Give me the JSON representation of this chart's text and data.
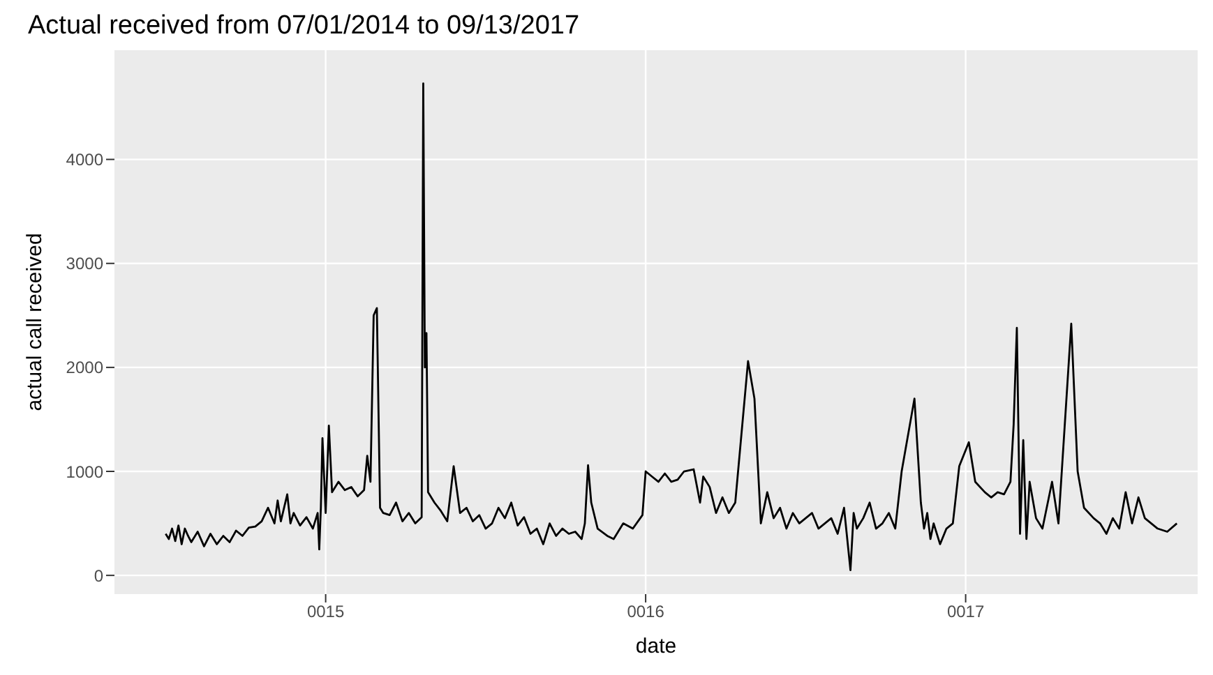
{
  "chart_data": {
    "type": "line",
    "title": "Actual received from 07/01/2014 to 09/13/2017",
    "xlabel": "date",
    "ylabel": "actual call received",
    "x": [
      14.5,
      14.51,
      14.52,
      14.53,
      14.54,
      14.55,
      14.56,
      14.57,
      14.58,
      14.6,
      14.62,
      14.64,
      14.66,
      14.68,
      14.7,
      14.72,
      14.74,
      14.76,
      14.78,
      14.8,
      14.82,
      14.84,
      14.85,
      14.86,
      14.88,
      14.89,
      14.9,
      14.92,
      14.94,
      14.96,
      14.975,
      14.98,
      14.985,
      14.99,
      15.0,
      15.01,
      15.02,
      15.04,
      15.06,
      15.08,
      15.1,
      15.12,
      15.13,
      15.14,
      15.15,
      15.16,
      15.17,
      15.18,
      15.2,
      15.22,
      15.24,
      15.26,
      15.28,
      15.3,
      15.305,
      15.31,
      15.315,
      15.32,
      15.34,
      15.36,
      15.38,
      15.4,
      15.42,
      15.44,
      15.46,
      15.48,
      15.5,
      15.52,
      15.54,
      15.56,
      15.58,
      15.6,
      15.62,
      15.64,
      15.66,
      15.68,
      15.7,
      15.72,
      15.74,
      15.76,
      15.78,
      15.8,
      15.81,
      15.82,
      15.83,
      15.85,
      15.88,
      15.9,
      15.93,
      15.96,
      15.99,
      16.0,
      16.02,
      16.04,
      16.06,
      16.08,
      16.1,
      16.12,
      16.15,
      16.17,
      16.18,
      16.2,
      16.22,
      16.24,
      16.26,
      16.28,
      16.32,
      16.34,
      16.36,
      16.38,
      16.4,
      16.42,
      16.44,
      16.46,
      16.48,
      16.5,
      16.52,
      16.54,
      16.56,
      16.58,
      16.6,
      16.62,
      16.64,
      16.65,
      16.66,
      16.68,
      16.7,
      16.72,
      16.74,
      16.76,
      16.78,
      16.8,
      16.84,
      16.86,
      16.87,
      16.88,
      16.89,
      16.9,
      16.92,
      16.94,
      16.96,
      16.98,
      17.01,
      17.03,
      17.06,
      17.08,
      17.1,
      17.12,
      17.14,
      17.15,
      17.16,
      17.17,
      17.18,
      17.19,
      17.2,
      17.22,
      17.24,
      17.27,
      17.29,
      17.33,
      17.35,
      17.37,
      17.4,
      17.42,
      17.44,
      17.46,
      17.48,
      17.5,
      17.52,
      17.54,
      17.56,
      17.58,
      17.6,
      17.63,
      17.66
    ],
    "values": [
      400,
      350,
      450,
      330,
      480,
      300,
      450,
      380,
      320,
      420,
      280,
      400,
      300,
      380,
      320,
      430,
      380,
      460,
      470,
      520,
      650,
      500,
      720,
      520,
      780,
      500,
      600,
      480,
      560,
      450,
      600,
      250,
      650,
      1320,
      600,
      1440,
      800,
      900,
      820,
      850,
      760,
      820,
      1150,
      900,
      2500,
      2570,
      650,
      600,
      580,
      700,
      520,
      600,
      500,
      560,
      4730,
      2000,
      2330,
      800,
      700,
      620,
      520,
      1050,
      600,
      650,
      520,
      580,
      450,
      500,
      650,
      550,
      700,
      480,
      560,
      400,
      450,
      300,
      500,
      380,
      450,
      400,
      420,
      350,
      500,
      1060,
      700,
      450,
      380,
      350,
      500,
      450,
      580,
      1000,
      950,
      900,
      980,
      900,
      920,
      1000,
      1020,
      700,
      950,
      850,
      600,
      750,
      600,
      700,
      2060,
      1700,
      500,
      800,
      550,
      650,
      450,
      600,
      500,
      550,
      600,
      450,
      500,
      550,
      400,
      650,
      50,
      600,
      450,
      550,
      700,
      450,
      500,
      600,
      450,
      1000,
      1700,
      700,
      450,
      600,
      350,
      500,
      300,
      450,
      500,
      1050,
      1280,
      900,
      800,
      750,
      800,
      780,
      900,
      1450,
      2380,
      400,
      1300,
      350,
      900,
      550,
      450,
      900,
      500,
      2420,
      1000,
      650,
      550,
      500,
      400,
      550,
      450,
      800,
      500,
      750,
      550,
      500,
      450,
      420,
      500
    ],
    "color": "#000000",
    "xlim": [
      14.34,
      17.725
    ],
    "ylim": [
      -180,
      5050
    ],
    "xticks": [
      {
        "value": 15,
        "label": "0015"
      },
      {
        "value": 16,
        "label": "0016"
      },
      {
        "value": 17,
        "label": "0017"
      }
    ],
    "yticks": [
      0,
      1000,
      2000,
      3000,
      4000
    ],
    "grid": true,
    "legend": false
  }
}
